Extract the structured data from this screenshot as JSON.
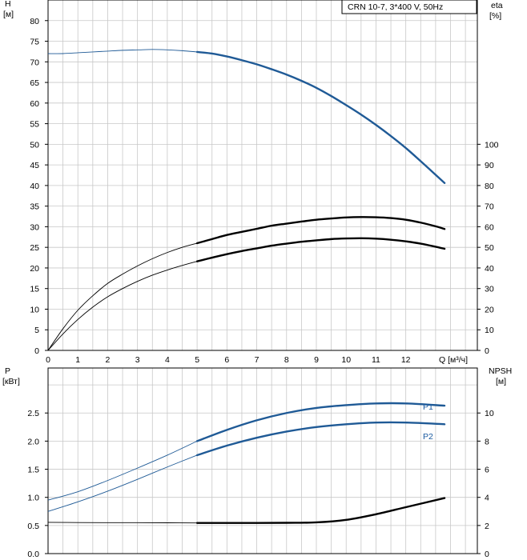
{
  "legend_box": "CRN 10-7, 3*400 V, 50Hz",
  "colors": {
    "blue": "#1f5a96",
    "black": "#000000",
    "grid": "#c8c8c8",
    "label_blue": "#1a5aa0"
  },
  "chart_data": [
    {
      "type": "line",
      "panel": "upper",
      "left_axis": {
        "label_line1": "H",
        "label_line2": "[м]",
        "ylim": [
          0,
          85
        ],
        "ticks": [
          0,
          5,
          10,
          15,
          20,
          25,
          30,
          35,
          40,
          45,
          50,
          55,
          60,
          65,
          70,
          75,
          80
        ]
      },
      "right_axis": {
        "label_line1": "eta",
        "label_line2": "[%]",
        "ylim": [
          0,
          170
        ],
        "ticks": [
          0,
          10,
          20,
          30,
          40,
          50,
          60,
          70,
          80,
          90,
          100
        ]
      },
      "x_axis": {
        "label": "Q [м³/ч]",
        "xlim": [
          0,
          14.4
        ],
        "ticks": [
          0,
          1,
          2,
          3,
          4,
          5,
          6,
          7,
          8,
          9,
          10,
          11,
          12
        ]
      },
      "series": [
        {
          "id": "H",
          "color": "#1f5a96",
          "axis": "left",
          "thin_until": 5,
          "points": [
            [
              0,
              72
            ],
            [
              0.5,
              72
            ],
            [
              1,
              72.2
            ],
            [
              1.5,
              72.4
            ],
            [
              2,
              72.6
            ],
            [
              2.5,
              72.8
            ],
            [
              3,
              72.9
            ],
            [
              3.5,
              73
            ],
            [
              4,
              72.9
            ],
            [
              4.5,
              72.7
            ],
            [
              5,
              72.4
            ],
            [
              5.5,
              72
            ],
            [
              6,
              71.3
            ],
            [
              6.5,
              70.4
            ],
            [
              7,
              69.4
            ],
            [
              7.5,
              68.2
            ],
            [
              8,
              66.9
            ],
            [
              8.5,
              65.4
            ],
            [
              9,
              63.7
            ],
            [
              9.5,
              61.7
            ],
            [
              10,
              59.5
            ],
            [
              10.5,
              57.2
            ],
            [
              11,
              54.7
            ],
            [
              11.5,
              52
            ],
            [
              12,
              49.1
            ],
            [
              12.5,
              45.9
            ],
            [
              13,
              42.6
            ],
            [
              13.3,
              40.6
            ]
          ]
        },
        {
          "id": "eta_upper",
          "color": "#000000",
          "axis": "right",
          "thin_until": 5,
          "points": [
            [
              0,
              0
            ],
            [
              0.5,
              10.5
            ],
            [
              1,
              19.5
            ],
            [
              1.5,
              26.5
            ],
            [
              2,
              32.5
            ],
            [
              2.5,
              37
            ],
            [
              3,
              41
            ],
            [
              3.5,
              44.5
            ],
            [
              4,
              47.5
            ],
            [
              4.5,
              50
            ],
            [
              5,
              52
            ],
            [
              5.5,
              54
            ],
            [
              6,
              56
            ],
            [
              6.5,
              57.5
            ],
            [
              7,
              59
            ],
            [
              7.5,
              60.5
            ],
            [
              8,
              61.5
            ],
            [
              8.5,
              62.5
            ],
            [
              9,
              63.4
            ],
            [
              9.5,
              64
            ],
            [
              10,
              64.5
            ],
            [
              10.5,
              64.7
            ],
            [
              11,
              64.6
            ],
            [
              11.5,
              64.2
            ],
            [
              12,
              63.4
            ],
            [
              12.5,
              62
            ],
            [
              13,
              60.2
            ],
            [
              13.3,
              58.9
            ]
          ]
        },
        {
          "id": "eta_lower",
          "color": "#000000",
          "axis": "right",
          "thin_until": 5,
          "points": [
            [
              0,
              0
            ],
            [
              0.5,
              8
            ],
            [
              1,
              15
            ],
            [
              1.5,
              21
            ],
            [
              2,
              26
            ],
            [
              2.5,
              30
            ],
            [
              3,
              33.5
            ],
            [
              3.5,
              36.5
            ],
            [
              4,
              39
            ],
            [
              4.5,
              41.2
            ],
            [
              5,
              43.2
            ],
            [
              5.5,
              45
            ],
            [
              6,
              46.7
            ],
            [
              6.5,
              48.2
            ],
            [
              7,
              49.5
            ],
            [
              7.5,
              50.8
            ],
            [
              8,
              51.8
            ],
            [
              8.5,
              52.7
            ],
            [
              9,
              53.4
            ],
            [
              9.5,
              54
            ],
            [
              10,
              54.3
            ],
            [
              10.5,
              54.4
            ],
            [
              11,
              54.2
            ],
            [
              11.5,
              53.7
            ],
            [
              12,
              52.9
            ],
            [
              12.5,
              51.8
            ],
            [
              13,
              50.3
            ],
            [
              13.3,
              49.3
            ]
          ]
        }
      ]
    },
    {
      "type": "line",
      "panel": "lower",
      "left_axis": {
        "label_line1": "P",
        "label_line2": "[кВт]",
        "ylim": [
          0,
          3.3
        ],
        "ticks": [
          "0.0",
          "0.5",
          "1.0",
          "1.5",
          "2.0",
          "2.5"
        ]
      },
      "right_axis": {
        "label_line1": "NPSH",
        "label_line2": "[м]",
        "ylim": [
          0,
          13.2
        ],
        "ticks": [
          0,
          2,
          4,
          6,
          8,
          10
        ]
      },
      "series": [
        {
          "id": "P1",
          "name": "P1",
          "color": "#1f5a96",
          "axis": "left",
          "thin_until": 5,
          "points": [
            [
              0,
              0.95
            ],
            [
              1,
              1.1
            ],
            [
              2,
              1.3
            ],
            [
              3,
              1.52
            ],
            [
              4,
              1.75
            ],
            [
              5,
              2.0
            ],
            [
              6,
              2.2
            ],
            [
              7,
              2.37
            ],
            [
              8,
              2.5
            ],
            [
              9,
              2.59
            ],
            [
              10,
              2.64
            ],
            [
              11,
              2.67
            ],
            [
              12,
              2.67
            ],
            [
              13.3,
              2.63
            ]
          ]
        },
        {
          "id": "P2",
          "name": "P2",
          "color": "#1f5a96",
          "axis": "left",
          "thin_until": 5,
          "points": [
            [
              0,
              0.75
            ],
            [
              1,
              0.92
            ],
            [
              2,
              1.11
            ],
            [
              3,
              1.32
            ],
            [
              4,
              1.54
            ],
            [
              5,
              1.75
            ],
            [
              6,
              1.92
            ],
            [
              7,
              2.06
            ],
            [
              8,
              2.17
            ],
            [
              9,
              2.25
            ],
            [
              10,
              2.3
            ],
            [
              11,
              2.33
            ],
            [
              12,
              2.33
            ],
            [
              13.3,
              2.3
            ]
          ]
        },
        {
          "id": "NPSH",
          "color": "#000000",
          "axis": "right",
          "thin_until": 5,
          "points": [
            [
              0,
              2.22
            ],
            [
              1,
              2.21
            ],
            [
              2,
              2.2
            ],
            [
              3,
              2.2
            ],
            [
              4,
              2.19
            ],
            [
              5,
              2.18
            ],
            [
              6,
              2.18
            ],
            [
              7,
              2.18
            ],
            [
              8,
              2.19
            ],
            [
              9,
              2.22
            ],
            [
              10,
              2.4
            ],
            [
              11,
              2.8
            ],
            [
              12,
              3.3
            ],
            [
              13.3,
              3.95
            ]
          ]
        }
      ]
    }
  ]
}
